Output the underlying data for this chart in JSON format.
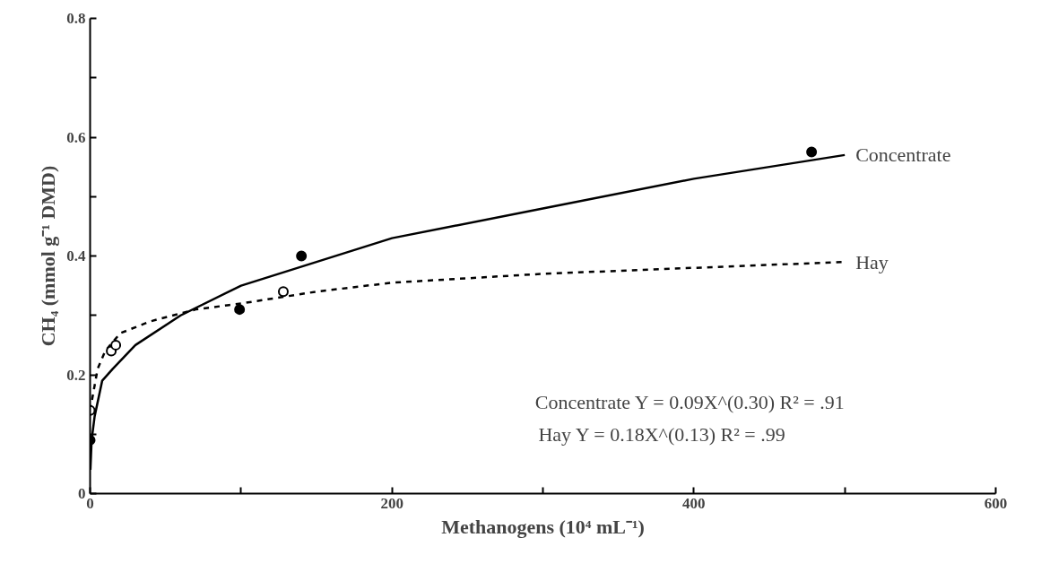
{
  "chart_data": {
    "type": "line",
    "xlabel": "Methanogens (10⁴ mL⁻¹)",
    "ylabel": "CH₄ (mmol g⁻¹ DMD)",
    "xlim": [
      0,
      600
    ],
    "ylim": [
      0,
      0.8
    ],
    "xticks": [
      0,
      {
        "value": 100,
        "label": null
      },
      200,
      {
        "value": 300,
        "label": null
      },
      400,
      {
        "value": 500,
        "label": null
      },
      600
    ],
    "yticks": [
      0,
      {
        "value": 0.1,
        "label": null
      },
      0.2,
      {
        "value": 0.3,
        "label": null
      },
      0.4,
      {
        "value": 0.5,
        "label": null
      },
      0.6,
      {
        "value": 0.7,
        "label": null
      },
      0.8
    ],
    "grid": false,
    "series": [
      {
        "name": "Concentrate",
        "line_style": "solid",
        "color": "#000000",
        "x": [
          0.2,
          1,
          3,
          8,
          15,
          30,
          60,
          100,
          150,
          200,
          300,
          400,
          500
        ],
        "values": [
          0.04,
          0.09,
          0.13,
          0.19,
          0.21,
          0.25,
          0.3,
          0.35,
          0.39,
          0.43,
          0.48,
          0.53,
          0.57
        ]
      },
      {
        "name": "Hay",
        "line_style": "dashed",
        "color": "#000000",
        "x": [
          0,
          5,
          10,
          20,
          40,
          70,
          100,
          150,
          200,
          300,
          400,
          500
        ],
        "values": [
          0.14,
          0.21,
          0.24,
          0.27,
          0.29,
          0.31,
          0.32,
          0.34,
          0.355,
          0.37,
          0.38,
          0.39
        ]
      },
      {
        "type": "scatter",
        "marker": "circle",
        "color": "#000000",
        "x": [
          0,
          99,
          140,
          478
        ],
        "values": [
          0.09,
          0.31,
          0.4,
          0.575
        ]
      },
      {
        "type": "scatter",
        "marker": "circle",
        "color": "#ffffff",
        "x": [
          0,
          14,
          17,
          128
        ],
        "values": [
          0.14,
          0.24,
          0.25,
          0.34
        ]
      }
    ],
    "annotations": [
      "Concentrate  Y = 0.09X^(0.30) R² = .91",
      "Hay              Y = 0.18X^(0.13) R² = .99"
    ]
  }
}
